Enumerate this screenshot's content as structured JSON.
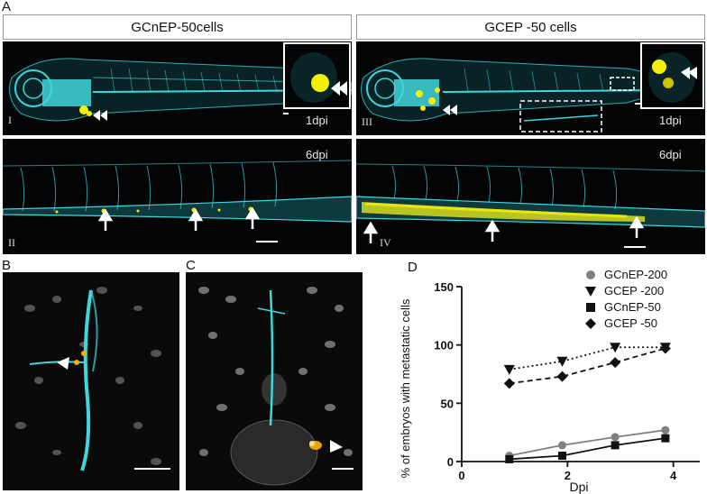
{
  "panel_labels": {
    "A": "A",
    "B": "B",
    "C": "C",
    "D": "D"
  },
  "headers": {
    "left": "GCnEP-50cells",
    "right": "GCEP -50 cells"
  },
  "sub_labels": {
    "I": "I",
    "II": "II",
    "III": "III",
    "IV": "IV"
  },
  "dpi_labels": {
    "I": "1dpi",
    "II": "6dpi",
    "III": "1dpi",
    "IV": "6dpi"
  },
  "colors": {
    "vessel": "#3fd6dc",
    "tumor": "#f5f000",
    "nuclei": "#bdbdbd",
    "series_grey": "#808080",
    "series_black": "#111111"
  },
  "chart_data": {
    "type": "line",
    "xlabel": "Dpi",
    "ylabel": "% of embryos with metastatic cells",
    "xlim": [
      0,
      4.5
    ],
    "ylim": [
      0,
      150
    ],
    "x_ticks": [
      0,
      2,
      4
    ],
    "y_ticks": [
      0,
      50,
      100,
      150
    ],
    "legend_position": "top-right",
    "series": [
      {
        "name": "GCnEP-200",
        "marker": "circle",
        "line": "solid",
        "color": "#808080",
        "x": [
          0.9,
          1.9,
          2.9,
          3.85
        ],
        "y": [
          5,
          14,
          21,
          27
        ]
      },
      {
        "name": "GCEP -200",
        "marker": "triangle-down",
        "line": "dotted",
        "color": "#111111",
        "x": [
          0.9,
          1.9,
          2.9,
          3.85
        ],
        "y": [
          79,
          86,
          98,
          98
        ]
      },
      {
        "name": "GCnEP-50",
        "marker": "square",
        "line": "solid",
        "color": "#111111",
        "x": [
          0.9,
          1.9,
          2.9,
          3.85
        ],
        "y": [
          2,
          5,
          14,
          20
        ]
      },
      {
        "name": "GCEP -50",
        "marker": "diamond",
        "line": "dashed",
        "color": "#111111",
        "x": [
          0.9,
          1.9,
          2.9,
          3.85
        ],
        "y": [
          67,
          73,
          85,
          97
        ]
      }
    ]
  }
}
